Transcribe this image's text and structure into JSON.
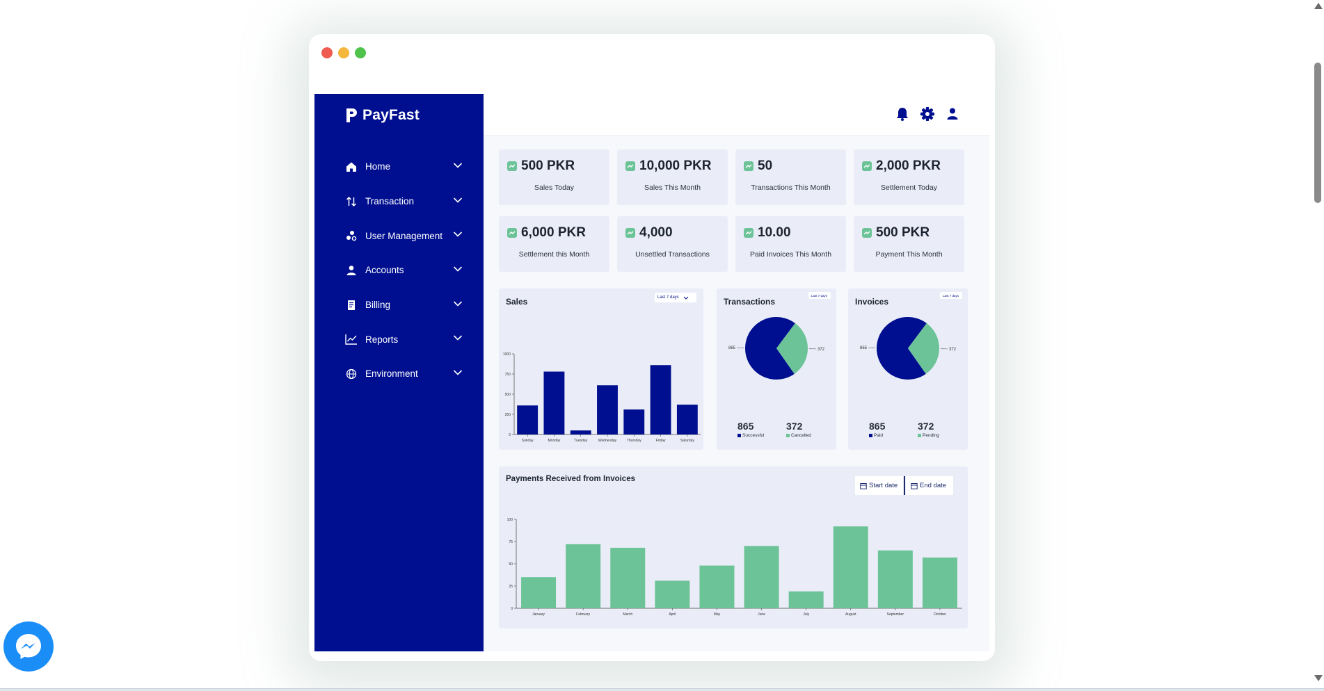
{
  "app": {
    "brand": "PayFast"
  },
  "colors": {
    "sidebar": "#000f8f",
    "accent_green": "#6cc397",
    "card_bg": "#eaedf8"
  },
  "sidebar": {
    "items": [
      {
        "label": "Home",
        "icon": "home-icon"
      },
      {
        "label": "Transaction",
        "icon": "arrows-updown-icon"
      },
      {
        "label": "User Management",
        "icon": "users-icon"
      },
      {
        "label": "Accounts",
        "icon": "user-icon"
      },
      {
        "label": "Billing",
        "icon": "receipt-icon"
      },
      {
        "label": "Reports",
        "icon": "chart-line-icon"
      },
      {
        "label": "Environment",
        "icon": "globe-icon"
      }
    ]
  },
  "header": {
    "icons": [
      "bell-icon",
      "gear-icon",
      "user-icon"
    ]
  },
  "stats": [
    {
      "value": "500 PKR",
      "label": "Sales Today"
    },
    {
      "value": "10,000 PKR",
      "label": "Sales This Month"
    },
    {
      "value": "50",
      "label": "Transactions This Month"
    },
    {
      "value": "2,000 PKR",
      "label": "Settlement Today"
    },
    {
      "value": "6,000 PKR",
      "label": "Settlement this Month"
    },
    {
      "value": "4,000",
      "label": "Unsettled Transactions"
    },
    {
      "value": "10.00",
      "label": "Paid Invoices This Month"
    },
    {
      "value": "500 PKR",
      "label": "Payment This Month"
    }
  ],
  "sales": {
    "title": "Sales",
    "period": "Last 7 days",
    "chart_data": {
      "type": "bar",
      "categories": [
        "Sunday",
        "Monday",
        "Tuesday",
        "Wednesday",
        "Thursday",
        "Friday",
        "Saturday"
      ],
      "values": [
        360,
        780,
        50,
        610,
        310,
        860,
        370
      ],
      "yticks": [
        "0",
        "250",
        "500",
        "750",
        "1000"
      ],
      "ylim": [
        0,
        1000
      ],
      "color": "#000f8f"
    }
  },
  "transactions": {
    "title": "Transactions",
    "period": "Last 7 days",
    "chart_data": {
      "type": "pie",
      "labels": [
        "Successful",
        "Cancelled"
      ],
      "values": [
        865,
        372
      ],
      "value_labels": [
        "865",
        "372"
      ],
      "colors": [
        "#000f8f",
        "#6cc397"
      ]
    },
    "totals": [
      {
        "value": "865",
        "label": "Successful"
      },
      {
        "value": "372",
        "label": "Cancelled"
      }
    ]
  },
  "invoices": {
    "title": "Invoices",
    "period": "Last 7 days",
    "chart_data": {
      "type": "pie",
      "labels": [
        "Paid",
        "Pending"
      ],
      "values": [
        865,
        372
      ],
      "value_labels": [
        "865",
        "372"
      ],
      "colors": [
        "#000f8f",
        "#6cc397"
      ]
    },
    "totals": [
      {
        "value": "865",
        "label": "Paid"
      },
      {
        "value": "372",
        "label": "Pending"
      }
    ]
  },
  "payments": {
    "title": "Payments Received from Invoices",
    "start_date": "Start date",
    "end_date": "End date",
    "chart_data": {
      "type": "bar",
      "categories": [
        "January",
        "February",
        "March",
        "April",
        "May",
        "June",
        "July",
        "August",
        "September",
        "October"
      ],
      "values": [
        35,
        72,
        68,
        31,
        48,
        70,
        19,
        92,
        65,
        57
      ],
      "yticks": [
        "0",
        "25",
        "50",
        "75",
        "100"
      ],
      "ylim": [
        0,
        100
      ],
      "color": "#6cc397"
    }
  }
}
